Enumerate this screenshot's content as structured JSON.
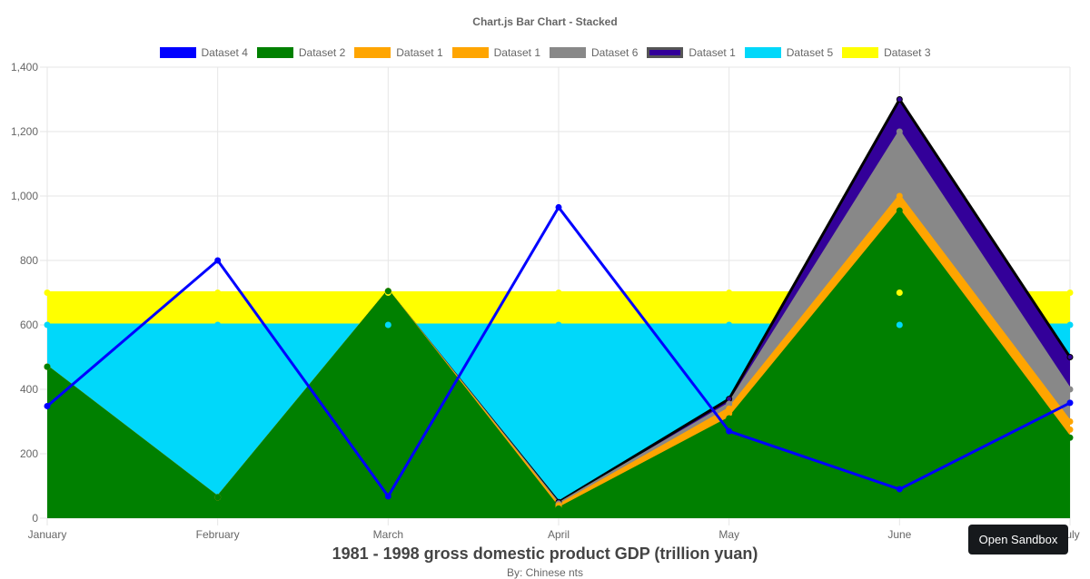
{
  "chart_data": {
    "type": "area",
    "title": "Chart.js Bar Chart - Stacked",
    "xlabel": "1981 - 1998 gross domestic product GDP (trillion yuan)",
    "subtitle": "By: Chinese nts",
    "categories": [
      "January",
      "February",
      "March",
      "April",
      "May",
      "June",
      "July"
    ],
    "ylim": [
      0,
      1400
    ],
    "yticks": [
      0,
      200,
      400,
      600,
      800,
      1000,
      1200,
      1400
    ],
    "ytick_labels": [
      "0",
      "200",
      "400",
      "600",
      "800",
      "1,000",
      "1,200",
      "1,400"
    ],
    "grid": true,
    "legend_position": "top",
    "series": [
      {
        "name": "Dataset 3",
        "color": "#ffff00",
        "border": "#ffff00",
        "fill": true,
        "values": [
          700,
          700,
          700,
          700,
          700,
          700,
          700
        ]
      },
      {
        "name": "Dataset 5",
        "color": "#00d8fa",
        "border": "#00d8fa",
        "fill": true,
        "values": [
          600,
          600,
          600,
          600,
          600,
          600,
          600
        ]
      },
      {
        "name": "Dataset 1",
        "color": "#330099",
        "border": "#000000",
        "fill": true,
        "values": [
          470,
          65,
          705,
          50,
          370,
          1300,
          500
        ]
      },
      {
        "name": "Dataset 6",
        "color": "#888888",
        "border": "#888888",
        "fill": true,
        "values": [
          470,
          65,
          705,
          45,
          355,
          1200,
          400
        ]
      },
      {
        "name": "Dataset 1",
        "color": "#ffa500",
        "border": "#ffa500",
        "fill": true,
        "values": [
          470,
          65,
          705,
          40,
          340,
          1000,
          300
        ]
      },
      {
        "name": "Dataset 1",
        "color": "#ffa500",
        "border": "#ffa500",
        "fill": true,
        "values": [
          470,
          65,
          705,
          35,
          325,
          975,
          275
        ]
      },
      {
        "name": "Dataset 2",
        "color": "#008000",
        "border": "#008000",
        "fill": true,
        "values": [
          470,
          65,
          705,
          30,
          310,
          955,
          250
        ]
      },
      {
        "name": "Dataset 4",
        "color": "#0000ff",
        "border": "#0000ff",
        "fill": false,
        "values": [
          348,
          800,
          68,
          965,
          270,
          90,
          358
        ]
      }
    ],
    "legend_entries": [
      {
        "label": "Dataset 4",
        "color": "#0000ff",
        "border": "#0000ff"
      },
      {
        "label": "Dataset 2",
        "color": "#008000",
        "border": "#008000"
      },
      {
        "label": "Dataset 1",
        "color": "#ffa500",
        "border": "#ffa500"
      },
      {
        "label": "Dataset 1",
        "color": "#ffa500",
        "border": "#ffa500"
      },
      {
        "label": "Dataset 6",
        "color": "#888888",
        "border": "#888888"
      },
      {
        "label": "Dataset 1",
        "color": "#330099",
        "border": "#555555"
      },
      {
        "label": "Dataset 5",
        "color": "#00d8fa",
        "border": "#00d8fa"
      },
      {
        "label": "Dataset 3",
        "color": "#ffff00",
        "border": "#ffff00"
      }
    ]
  },
  "ui": {
    "open_sandbox_label": "Open Sandbox"
  }
}
